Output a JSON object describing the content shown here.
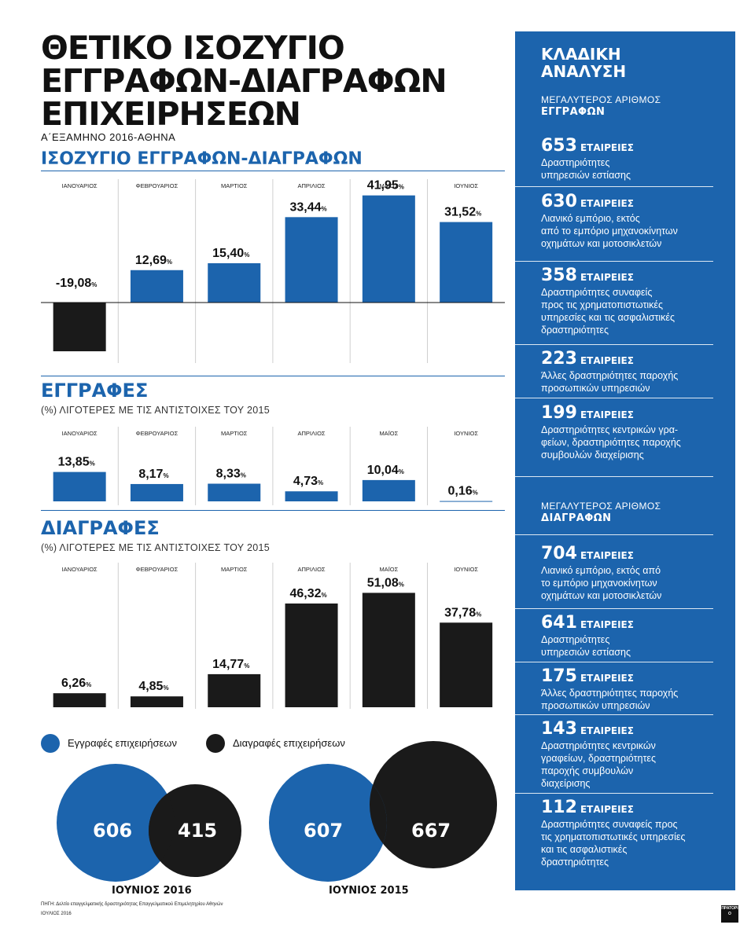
{
  "header": {
    "title_lines": [
      "ΘΕΤΙΚΟ ΙΣΟΖΥΓΙΟ",
      "ΕΓΓΡΑΦΩΝ-ΔΙΑΓΡΑΦΩΝ",
      "ΕΠΙΧΕΙΡΗΣΕΩΝ"
    ],
    "subtitle": "Α΄ΕΞΑΜΗΝΟ 2016-ΑΘΗΝΑ"
  },
  "sections": {
    "balance": {
      "title": "ΙΣΟΖΥΓΙΟ ΕΓΓΡΑΦΩΝ-ΔΙΑΓΡΑΦΩΝ"
    },
    "registrations": {
      "title": "ΕΓΓΡΑΦΕΣ",
      "note": "(%) ΛΙΓΟΤΕΡΕΣ ΜΕ ΤΙΣ ΑΝΤΙΣΤΟΙΧΕΣ ΤΟΥ 2015"
    },
    "deletions": {
      "title": "ΔΙΑΓΡΑΦΕΣ",
      "note": "(%) ΛΙΓΟΤΕΡΕΣ ΜΕ ΤΙΣ ΑΝΤΙΣΤΟΙΧΕΣ ΤΟΥ 2015"
    }
  },
  "chart_data": [
    {
      "type": "bar",
      "id": "balance",
      "title": "ΙΣΟΖΥΓΙΟ ΕΓΓΡΑΦΩΝ-ΔΙΑΓΡΑΦΩΝ",
      "categories": [
        "ΙΑΝΟΥΑΡΙΟΣ",
        "ΦΕΒΡΟΥΑΡΙΟΣ",
        "ΜΑΡΤΙΟΣ",
        "ΑΠΡΙΛΙΟΣ",
        "ΜΑΪΟΣ",
        "ΙΟΥΝΙΟΣ"
      ],
      "values": [
        -19.08,
        12.69,
        15.4,
        33.44,
        41.95,
        31.52
      ],
      "labels": [
        "-19,08",
        "12,69",
        "15,40",
        "33,44",
        "41,95",
        "31,52"
      ],
      "unit": "%",
      "colors": {
        "positive": "#1c64ad",
        "negative": "#1a1a1a"
      }
    },
    {
      "type": "bar",
      "id": "registrations",
      "title": "ΕΓΓΡΑΦΕΣ",
      "categories": [
        "ΙΑΝΟΥΑΡΙΟΣ",
        "ΦΕΒΡΟΥΑΡΙΟΣ",
        "ΜΑΡΤΙΟΣ",
        "ΑΠΡΙΛΙΟΣ",
        "ΜΑΪΟΣ",
        "ΙΟΥΝΙΟΣ"
      ],
      "values": [
        13.85,
        8.17,
        8.33,
        4.73,
        10.04,
        0.16
      ],
      "labels": [
        "13,85",
        "8,17",
        "8,33",
        "4,73",
        "10,04",
        "0,16"
      ],
      "unit": "%",
      "color": "#1c64ad"
    },
    {
      "type": "bar",
      "id": "deletions",
      "title": "ΔΙΑΓΡΑΦΕΣ",
      "categories": [
        "ΙΑΝΟΥΑΡΙΟΣ",
        "ΦΕΒΡΟΥΑΡΙΟΣ",
        "ΜΑΡΤΙΟΣ",
        "ΑΠΡΙΛΙΟΣ",
        "ΜΑΪΟΣ",
        "ΙΟΥΝΙΟΣ"
      ],
      "values": [
        6.26,
        4.85,
        14.77,
        46.32,
        51.08,
        37.78
      ],
      "labels": [
        "6,26",
        "4,85",
        "14,77",
        "46,32",
        "51,08",
        "37,78"
      ],
      "unit": "%",
      "color": "#1a1a1a"
    }
  ],
  "legend": {
    "registrations": "Εγγραφές επιχειρήσεων",
    "deletions": "Διαγραφές επιχειρήσεων"
  },
  "circles": {
    "june2016": {
      "label": "ΙΟΥΝΙΟΣ 2016",
      "registrations": 606,
      "deletions": 415
    },
    "june2015": {
      "label": "ΙΟΥΝΙΟΣ 2015",
      "registrations": 607,
      "deletions": 667
    }
  },
  "panel": {
    "title_lines": [
      "ΚΛΑΔΙΚΗ",
      "ΑΝΑΛΥΣΗ"
    ],
    "reg_sub1": "ΜΕΓΑΛΥΤΕΡΟΣ ΑΡΙΘΜΟΣ",
    "reg_sub2": "ΕΓΓΡΑΦΩΝ",
    "reg_items": [
      {
        "num": "653",
        "unit": "ΕΤΑΙΡΕΙΕΣ",
        "desc": [
          "Δραστηριότητες",
          "υπηρεσιών εστίασης"
        ]
      },
      {
        "num": "630",
        "unit": "ΕΤΑΙΡΕΙΕΣ",
        "desc": [
          "Λιανικό εμπόριο, εκτός",
          "από το εμπόριο μηχανοκίνητων",
          "οχημάτων και μοτοσικλετών"
        ]
      },
      {
        "num": "358",
        "unit": "ΕΤΑΙΡΕΙΕΣ",
        "desc": [
          "Δραστηριότητες συναφείς",
          "προς τις χρηματοπιστωτικές",
          "υπηρεσίες και τις ασφαλιστικές",
          "δραστηριότητες"
        ]
      },
      {
        "num": "223",
        "unit": "ΕΤΑΙΡΕΙΕΣ",
        "desc": [
          "Άλλες δραστηριότητες παροχής",
          "προσωπικών υπηρεσιών"
        ]
      },
      {
        "num": "199",
        "unit": "ΕΤΑΙΡΕΙΕΣ",
        "desc": [
          "Δραστηριότητες κεντρικών γρα-",
          "φείων, δραστηριότητες παροχής",
          "συμβουλών διαχείρισης"
        ]
      }
    ],
    "del_sub1": "ΜΕΓΑΛΥΤΕΡΟΣ ΑΡΙΘΜΟΣ",
    "del_sub2": "ΔΙΑΓΡΑΦΩΝ",
    "del_items": [
      {
        "num": "704",
        "unit": "ΕΤΑΙΡΕΙΕΣ",
        "desc": [
          "Λιανικό εμπόριο, εκτός από",
          "το εμπόριο μηχανοκίνητων",
          "οχημάτων και μοτοσικλετών"
        ]
      },
      {
        "num": "641",
        "unit": "ΕΤΑΙΡΕΙΕΣ",
        "desc": [
          "Δραστηριότητες",
          "υπηρεσιών εστίασης"
        ]
      },
      {
        "num": "175",
        "unit": "ΕΤΑΙΡΕΙΕΣ",
        "desc": [
          "Άλλες δραστηριότητες παροχής",
          "προσωπικών υπηρεσιών"
        ]
      },
      {
        "num": "143",
        "unit": "ΕΤΑΙΡΕΙΕΣ",
        "desc": [
          "Δραστηριότητες κεντρικών",
          "γραφείων, δραστηριότητες",
          "παροχής συμβουλών",
          "διαχείρισης"
        ]
      },
      {
        "num": "112",
        "unit": "ΕΤΑΙΡΕΙΕΣ",
        "desc": [
          "Δραστηριότητες συναφείς προς",
          "τις χρηματοπιστωτικές υπηρεσίες",
          "και τις ασφαλιστικές",
          "δραστηριότητες"
        ]
      }
    ]
  },
  "footer": {
    "source": "ΠΗΓΗ: Δελτίο επαγγελματικής δραστηριότητας Επαγγελματικού Επιμελητηρίου Αθηνών",
    "date": "ΙΟΥΛΙΟΣ 2016",
    "logo": "ΠΡΑΤΟΡΙΟ"
  }
}
